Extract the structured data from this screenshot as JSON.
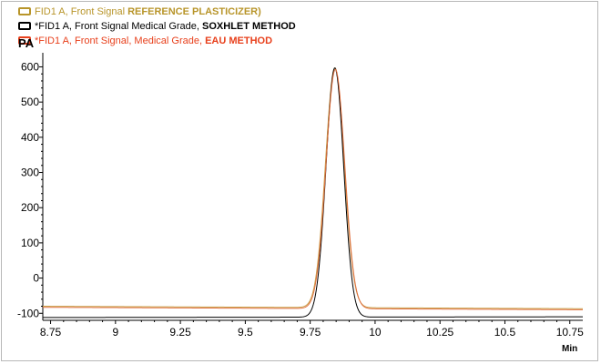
{
  "chart_data": {
    "type": "line",
    "ylabel": "PA",
    "xunit": "Min",
    "xlim": [
      8.72,
      10.8
    ],
    "ylim": [
      -120,
      640
    ],
    "x_ticks": [
      8.75,
      9,
      9.25,
      9.5,
      9.75,
      10,
      10.25,
      10.5,
      10.75
    ],
    "y_ticks": [
      600,
      500,
      400,
      300,
      200,
      100,
      0,
      -100
    ],
    "x_tick_labels": [
      "8.75",
      "9",
      "9.25",
      "9.5",
      "9.75",
      "10",
      "10.25",
      "10.5",
      "10.75"
    ],
    "y_tick_labels": [
      "600",
      "500",
      "400",
      "300",
      "200",
      "100",
      "0",
      "-100"
    ],
    "legend": [
      {
        "prefix": "FID1 A, Front Signal ",
        "bold": "REFERENCE PLASTICIZER)",
        "color": "#b8952a"
      },
      {
        "prefix": "*FID1 A, Front Signal Medical Grade, ",
        "bold": "SOXHLET METHOD",
        "color": "#000000"
      },
      {
        "prefix": "*FID1 A, Front Signal, Medical Grade, ",
        "bold": "EAU METHOD",
        "color": "#e8401c"
      }
    ],
    "series": [
      {
        "color": "#c8a04a",
        "baseline_start": -80,
        "baseline_end": -87,
        "peak_x": 9.845,
        "peak_y": 597,
        "sigma": 0.036
      },
      {
        "color": "#000000",
        "baseline_start": -112,
        "baseline_end": -110,
        "peak_x": 9.845,
        "peak_y": 597,
        "sigma": 0.034
      },
      {
        "color": "#e07040",
        "baseline_start": -83,
        "baseline_end": -90,
        "peak_x": 9.847,
        "peak_y": 593,
        "sigma": 0.036
      }
    ]
  }
}
